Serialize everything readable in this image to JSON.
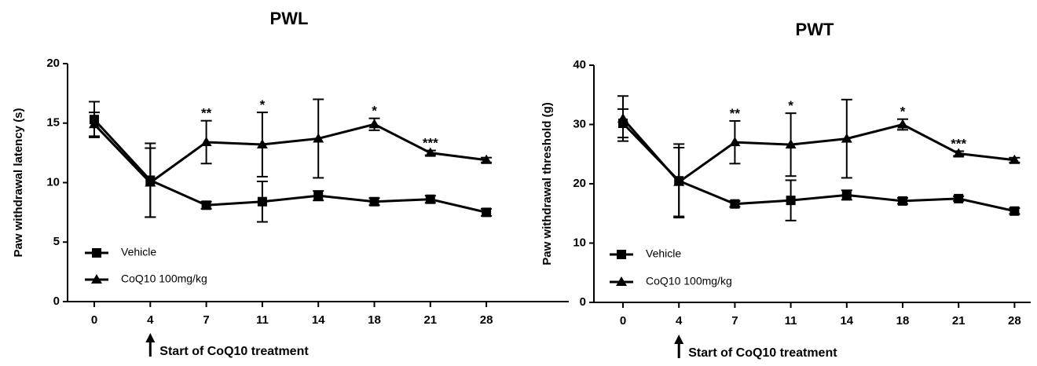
{
  "chart_data": [
    {
      "type": "line",
      "title": "PWL",
      "xlabel": "",
      "ylabel": "Paw withdrawal latency (s)",
      "categories": [
        "0",
        "4",
        "7",
        "11",
        "14",
        "18",
        "21",
        "28"
      ],
      "ylim": [
        0,
        20
      ],
      "yticks": [
        0,
        5,
        10,
        15,
        20
      ],
      "grid": false,
      "legend_position": "bottom-left",
      "series": [
        {
          "name": "Vehicle",
          "marker": "square",
          "values": [
            15.3,
            10.2,
            8.1,
            8.4,
            8.9,
            8.4,
            8.6,
            7.5
          ],
          "errors": [
            1.5,
            3.1,
            0.3,
            1.7,
            0.4,
            0.3,
            0.3,
            0.3
          ]
        },
        {
          "name": "CoQ10 100mg/kg",
          "marker": "triangle",
          "values": [
            14.9,
            10.0,
            13.4,
            13.2,
            13.7,
            14.9,
            12.5,
            11.9
          ],
          "errors": [
            1.0,
            2.9,
            1.8,
            2.7,
            3.3,
            0.5,
            0.2,
            0.2
          ]
        }
      ],
      "significance": [
        {
          "category": "7",
          "label": "**"
        },
        {
          "category": "11",
          "label": "*"
        },
        {
          "category": "18",
          "label": "*"
        },
        {
          "category": "21",
          "label": "***"
        }
      ],
      "annotation": "Start of CoQ10 treatment",
      "annotation_category": "4"
    },
    {
      "type": "line",
      "title": "PWT",
      "xlabel": "",
      "ylabel": "Paw withdrawal  threshold (g)",
      "categories": [
        "0",
        "4",
        "7",
        "11",
        "14",
        "18",
        "21",
        "28"
      ],
      "ylim": [
        0,
        40
      ],
      "yticks": [
        0,
        10,
        20,
        30,
        40
      ],
      "grid": false,
      "legend_position": "bottom-left",
      "series": [
        {
          "name": "Vehicle",
          "marker": "square",
          "values": [
            30.2,
            20.5,
            16.6,
            17.2,
            18.1,
            17.1,
            17.5,
            15.4
          ],
          "errors": [
            2.4,
            6.2,
            0.5,
            3.4,
            0.8,
            0.5,
            0.4,
            0.5
          ]
        },
        {
          "name": "CoQ10 100mg/kg",
          "marker": "triangle",
          "values": [
            31.0,
            20.3,
            27.0,
            26.6,
            27.6,
            30.0,
            25.1,
            24.0
          ],
          "errors": [
            3.8,
            5.8,
            3.6,
            5.3,
            6.6,
            0.9,
            0.4,
            0.4
          ]
        }
      ],
      "significance": [
        {
          "category": "7",
          "label": "**"
        },
        {
          "category": "11",
          "label": "*"
        },
        {
          "category": "18",
          "label": "*"
        },
        {
          "category": "21",
          "label": "***"
        }
      ],
      "annotation": "Start of CoQ10 treatment",
      "annotation_category": "4"
    }
  ]
}
